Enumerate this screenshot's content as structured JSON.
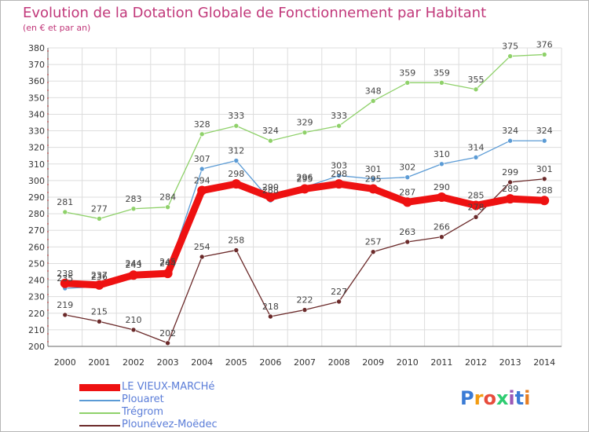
{
  "header": {
    "title": "Evolution de la Dotation Globale de Fonctionnement par Habitant",
    "subtitle": "(en € et par an)"
  },
  "logo": {
    "text": "Proxiti",
    "colors": [
      "#3a7bd5",
      "#f39c12",
      "#e74c3c",
      "#2ecc71",
      "#9b59b6",
      "#3a7bd5",
      "#e67e22"
    ]
  },
  "chart_data": {
    "type": "line",
    "title": "Evolution de la Dotation Globale de Fonctionnement par Habitant",
    "subtitle": "(en € et par an)",
    "xlabel": "",
    "ylabel": "",
    "ylim": [
      200,
      380
    ],
    "yticks": [
      200,
      210,
      220,
      230,
      240,
      250,
      260,
      270,
      280,
      290,
      300,
      310,
      320,
      330,
      340,
      350,
      360,
      370,
      380
    ],
    "grid": true,
    "legend_position": "bottom-left",
    "x": [
      "2000",
      "2001",
      "2002",
      "2003",
      "2004",
      "2005",
      "2006",
      "2007",
      "2008",
      "2009",
      "2010",
      "2011",
      "2012",
      "2013",
      "2014"
    ],
    "series": [
      {
        "name": "Trégrom",
        "color": "#8fd16a",
        "values": [
          281,
          277,
          283,
          284,
          328,
          333,
          324,
          329,
          333,
          348,
          359,
          359,
          355,
          375,
          376
        ]
      },
      {
        "name": "Plouaret",
        "color": "#5b9bd5",
        "values": [
          235,
          236,
          244,
          245,
          307,
          312,
          288,
          296,
          303,
          301,
          302,
          310,
          314,
          324,
          324
        ]
      },
      {
        "name": "Plounévez-Moëdec",
        "color": "#6b2a2a",
        "values": [
          219,
          215,
          210,
          202,
          254,
          258,
          218,
          222,
          227,
          257,
          263,
          266,
          278,
          299,
          301
        ]
      },
      {
        "name": "LE VIEUX-MARCHé",
        "color": "#ee1111",
        "values": [
          238,
          237,
          243,
          244,
          294,
          298,
          290,
          295,
          298,
          295,
          287,
          290,
          285,
          289,
          288
        ]
      }
    ]
  }
}
